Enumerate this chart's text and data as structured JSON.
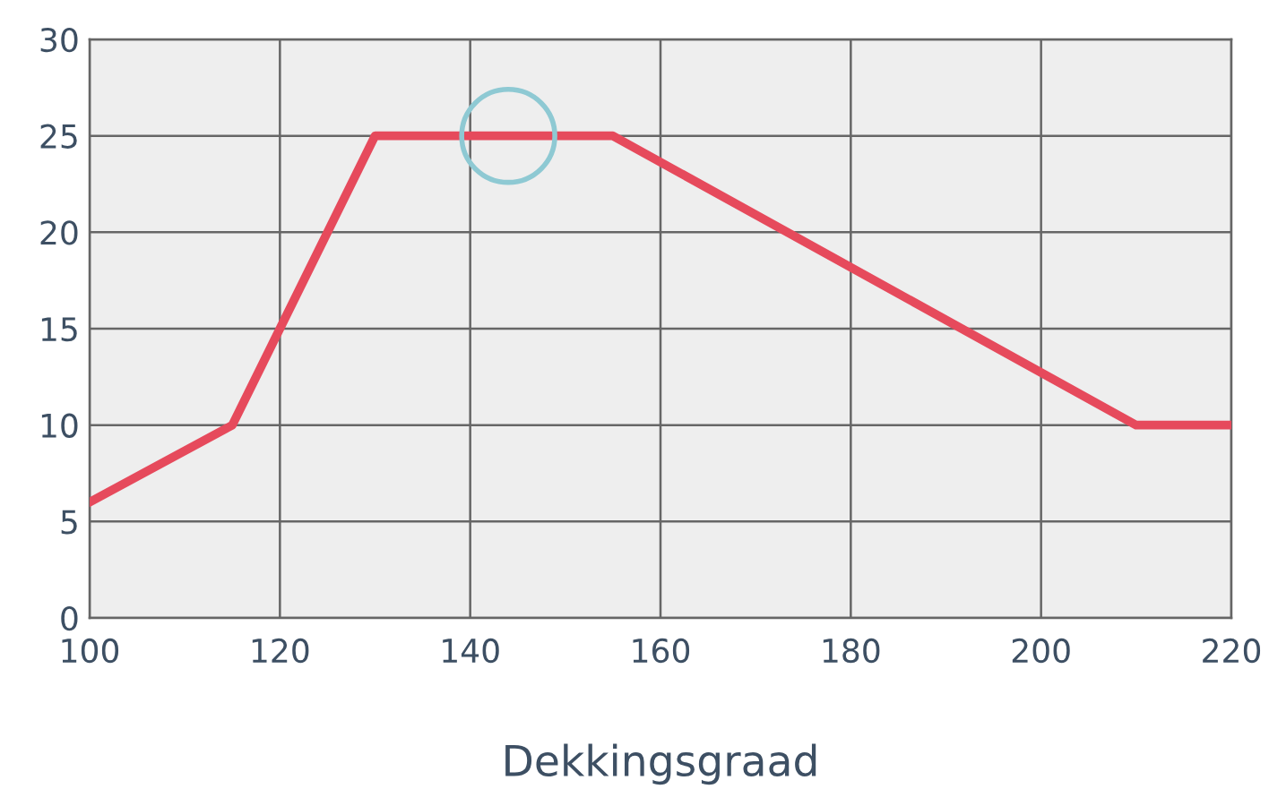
{
  "chart_data": {
    "type": "line",
    "xlabel": "Dekkingsgraad",
    "series": [
      {
        "color": "#e64a5c",
        "marker": "none",
        "x": [
          100,
          115,
          130,
          155,
          210,
          220
        ],
        "values": [
          6,
          10,
          25,
          25,
          10,
          10
        ]
      },
      {
        "type": "scatter",
        "marker": "circle",
        "color": "#8ec9d3",
        "x": [
          144
        ],
        "values": [
          25
        ]
      }
    ],
    "xlim": [
      100,
      220
    ],
    "xticks": [
      100,
      120,
      140,
      160,
      180,
      200,
      220
    ],
    "ylim": [
      0,
      30
    ],
    "yticks": [
      0,
      5,
      10,
      15,
      20,
      25,
      30
    ],
    "grid": true,
    "line_style": "solid"
  }
}
